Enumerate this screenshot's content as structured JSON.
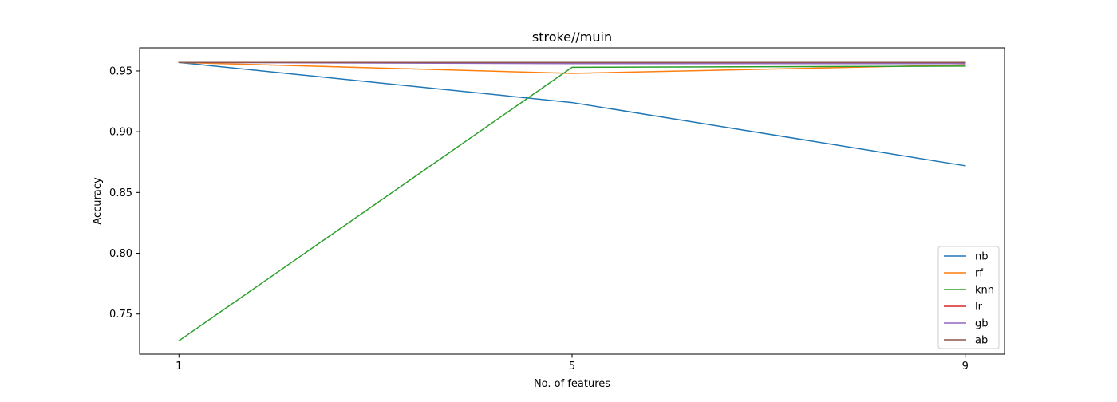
{
  "chart_data": {
    "type": "line",
    "title": "stroke//muin",
    "xlabel": "No. of features",
    "ylabel": "Accuracy",
    "x": [
      1,
      5,
      9
    ],
    "xticks": [
      "1",
      "5",
      "9"
    ],
    "yticks": [
      0.75,
      0.8,
      0.85,
      0.9,
      0.95
    ],
    "ytick_labels": [
      "0.75",
      "0.80",
      "0.85",
      "0.90",
      "0.95"
    ],
    "xlim": [
      0.6,
      9.4
    ],
    "ylim": [
      0.717,
      0.969
    ],
    "grid": false,
    "legend_position": "lower-right",
    "series": [
      {
        "name": "nb",
        "color": "#1f77b4",
        "values": [
          0.957,
          0.924,
          0.872
        ]
      },
      {
        "name": "rf",
        "color": "#ff7f0e",
        "values": [
          0.957,
          0.948,
          0.955
        ]
      },
      {
        "name": "knn",
        "color": "#2ca02c",
        "values": [
          0.728,
          0.953,
          0.954
        ]
      },
      {
        "name": "lr",
        "color": "#d62728",
        "values": [
          0.957,
          0.957,
          0.957
        ]
      },
      {
        "name": "gb",
        "color": "#9467bd",
        "values": [
          0.957,
          0.956,
          0.956
        ]
      },
      {
        "name": "ab",
        "color": "#8c564b",
        "values": [
          0.957,
          0.957,
          0.957
        ]
      }
    ]
  }
}
